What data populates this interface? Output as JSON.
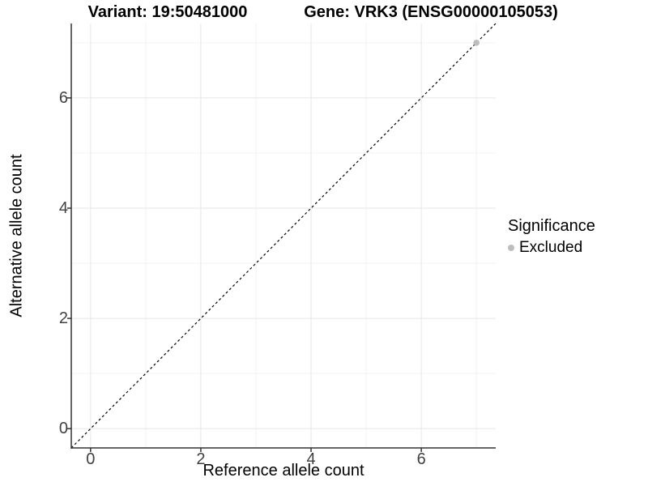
{
  "chart_data": {
    "type": "scatter",
    "title_left": "Variant: 19:50481000",
    "title_right": "Gene: VRK3 (ENSG00000105053)",
    "xlabel": "Reference allele count",
    "ylabel": "Alternative allele count",
    "xlim": [
      -0.35,
      7.35
    ],
    "ylim": [
      -0.35,
      7.35
    ],
    "x_major_ticks": [
      0,
      2,
      4,
      6
    ],
    "y_major_ticks": [
      0,
      2,
      4,
      6
    ],
    "x_minor_ticks": [
      1,
      3,
      5,
      7
    ],
    "y_minor_ticks": [
      1,
      3,
      5,
      7
    ],
    "grid": true,
    "legend_position": "right",
    "legend_title": "Significance",
    "series": [
      {
        "name": "Excluded",
        "color": "#bdbdbd",
        "marker": "circle",
        "points": [
          {
            "x": 7,
            "y": 7
          }
        ]
      }
    ],
    "reference_line": {
      "type": "identity",
      "from": [
        -0.35,
        -0.35
      ],
      "to": [
        7.35,
        7.35
      ],
      "style": "dashed",
      "color": "#000000"
    },
    "colors": {
      "grid_major": "#e6e6e6",
      "grid_minor": "#f2f2f2",
      "axis_line": "#333333",
      "tick_mark": "#333333",
      "tick_text": "#404040"
    }
  }
}
